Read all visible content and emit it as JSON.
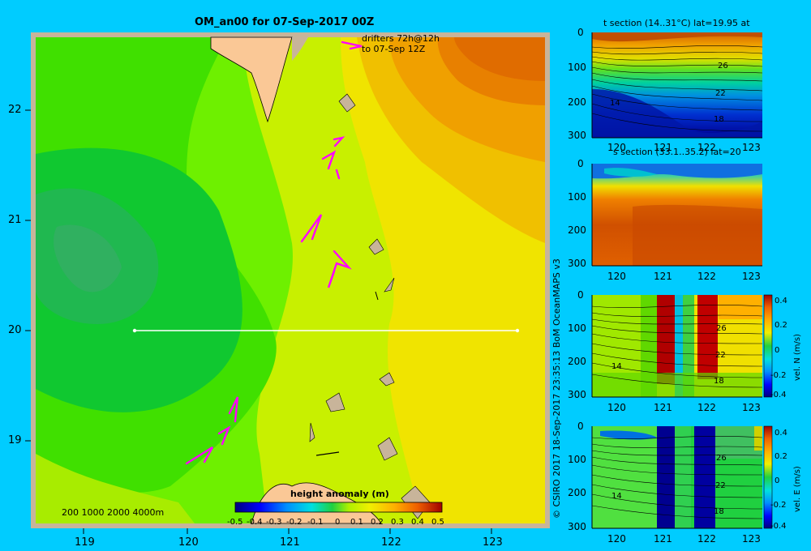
{
  "map": {
    "title": "OM_an00 for 07-Sep-2017 00Z",
    "drifters_line1": "drifters 72h@12h",
    "drifters_line2": "to 07-Sep 12Z",
    "depth_legend": "200  1000  2000  4000m",
    "x_ticks": [
      "119",
      "120",
      "121",
      "122",
      "123"
    ],
    "y_ticks": [
      "22",
      "21",
      "20",
      "19"
    ],
    "colorbar": {
      "title": "height anomaly  (m)",
      "ticks": [
        "-0.5",
        "-0.4",
        "-0.3",
        "-0.2",
        "-0.1",
        "0",
        "0.1",
        "0.2",
        "0.3",
        "0.4",
        "0.5"
      ]
    },
    "section_line": {
      "lat": 20,
      "lon_start": 119.5,
      "lon_end": 123.2
    },
    "colors": {
      "background": "#00ccff",
      "land": "#fac896",
      "drifter": "#ff00ff"
    }
  },
  "credit": "© CSIRO 2017   18-Sep-2017 23:35:13 BoM OceanMAPS v3",
  "panels": [
    {
      "id": "temperature",
      "title": "t section (14..31°C) lat=19.95 at",
      "y_ticks": [
        "0",
        "100",
        "200",
        "300"
      ],
      "x_ticks": [
        "120",
        "121",
        "122",
        "123"
      ],
      "contour_labels": [
        "26",
        "22",
        "18",
        "14"
      ]
    },
    {
      "id": "salinity",
      "title": "s section (33.1..35.2) lat=20",
      "y_ticks": [
        "0",
        "100",
        "200",
        "300"
      ],
      "x_ticks": [
        "120",
        "121",
        "122",
        "123"
      ]
    },
    {
      "id": "vel-n",
      "y_ticks": [
        "0",
        "100",
        "200",
        "300"
      ],
      "x_ticks": [
        "120",
        "121",
        "122",
        "123"
      ],
      "contour_labels": [
        "26",
        "22",
        "18",
        "14"
      ],
      "colorbar_label": "vel. N  (m/s)",
      "colorbar_ticks": [
        "0.4",
        "0.2",
        "0",
        "-0.2",
        "-0.4"
      ]
    },
    {
      "id": "vel-e",
      "y_ticks": [
        "0",
        "100",
        "200",
        "300"
      ],
      "x_ticks": [
        "120",
        "121",
        "122",
        "123"
      ],
      "contour_labels": [
        "26",
        "22",
        "18",
        "14"
      ],
      "colorbar_label": "vel. E  (m/s)",
      "colorbar_ticks": [
        "0.4",
        "0.2",
        "0",
        "-0.2",
        "-0.4"
      ]
    }
  ]
}
